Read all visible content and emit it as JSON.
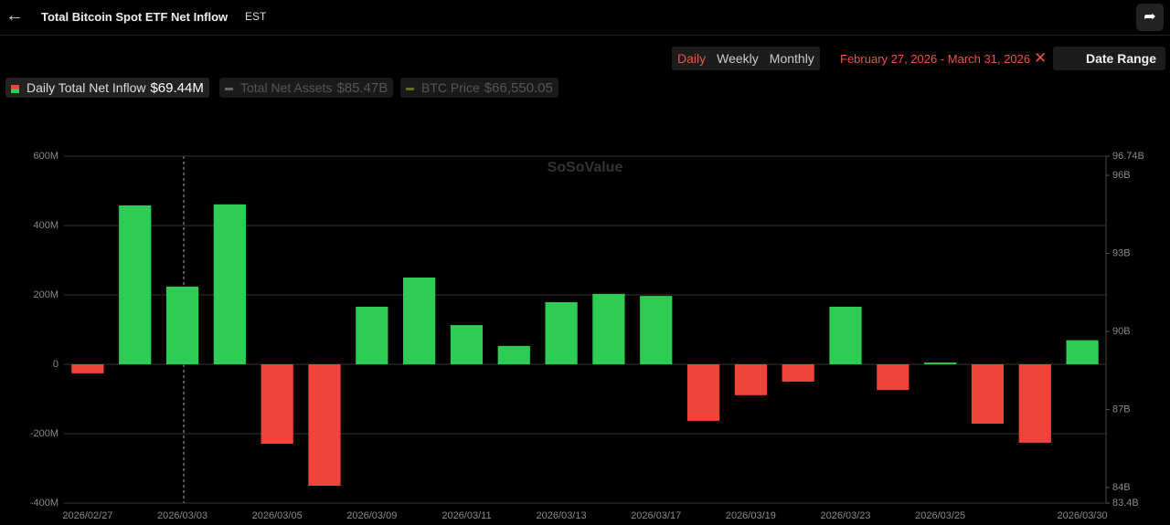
{
  "header": {
    "title": "Total Bitcoin Spot ETF Net Inflow",
    "timezone": "EST"
  },
  "controls": {
    "tabs": [
      "Daily",
      "Weekly",
      "Monthly"
    ],
    "active_tab": 0,
    "date_range": "February 27, 2026 - March 31, 2026",
    "date_button": "Date Range"
  },
  "legend": [
    {
      "name": "Daily Total Net Inflow",
      "value": "$69.44M",
      "color": "#2ecc55"
    },
    {
      "name": "Total Net Assets",
      "value": "$85.47B",
      "color": "#666"
    },
    {
      "name": "BTC Price",
      "value": "$66,550.05",
      "color": "#6b6b1e"
    }
  ],
  "watermark": "SoSoValue",
  "chart_data": {
    "type": "bar",
    "categories": [
      "2026/02/27",
      null,
      "2026/03/03",
      null,
      "2026/03/05",
      null,
      "2026/03/09",
      null,
      "2026/03/11",
      null,
      "2026/03/13",
      null,
      "2026/03/17",
      null,
      "2026/03/19",
      null,
      "2026/03/23",
      null,
      "2026/03/25",
      null,
      null,
      "2026/03/30"
    ],
    "values": [
      -26,
      458,
      224,
      461,
      -229,
      -350,
      166,
      250,
      113,
      53,
      179,
      203,
      197,
      -163,
      -89,
      -50,
      166,
      -74,
      5,
      -171,
      -226,
      69.44
    ],
    "positive_color": "#2ecc55",
    "negative_color": "#f0433a",
    "ylim": [
      -400,
      600
    ],
    "yticks": [
      {
        "value": -400,
        "label": "-400M"
      },
      {
        "value": -200,
        "label": "-200M"
      },
      0,
      {
        "value": 200,
        "label": "200M"
      },
      {
        "value": 400,
        "label": "400M"
      },
      {
        "value": 600,
        "label": "600M"
      }
    ],
    "y2lim": [
      83.4,
      96.74
    ],
    "y2ticks": [
      {
        "value": 83.4,
        "label": "83.4B"
      },
      {
        "value": 84,
        "label": "84B"
      },
      {
        "value": 87,
        "label": "87B"
      },
      {
        "value": 90,
        "label": "90B"
      },
      {
        "value": 93,
        "label": "93B"
      },
      {
        "value": 96,
        "label": "96B"
      },
      {
        "value": 96.74,
        "label": "96.74B"
      }
    ],
    "grid": true
  }
}
